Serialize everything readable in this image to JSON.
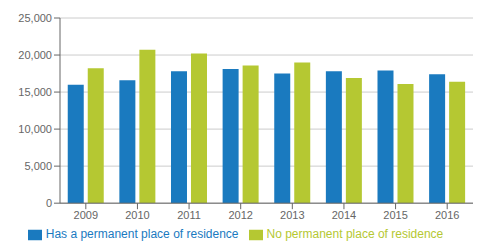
{
  "chart_data": {
    "type": "bar",
    "categories": [
      "2009",
      "2010",
      "2011",
      "2012",
      "2013",
      "2014",
      "2015",
      "2016"
    ],
    "series": [
      {
        "name": "Has a permanent place of residence",
        "color": "#1a7abf",
        "values": [
          16000,
          16600,
          17800,
          18100,
          17500,
          17800,
          17900,
          17400
        ]
      },
      {
        "name": "No permanent place of residence",
        "color": "#b5c832",
        "values": [
          18200,
          20700,
          20200,
          18600,
          19000,
          16900,
          16100,
          16400
        ]
      }
    ],
    "ylim": [
      0,
      25000
    ],
    "yticks": [
      0,
      {
        "value": 5000,
        "label": "5,000"
      },
      {
        "value": 10000,
        "label": "10,000"
      },
      {
        "value": 15000,
        "label": "15,000"
      },
      {
        "value": 20000,
        "label": "20,000"
      },
      {
        "value": 25000,
        "label": "25,000"
      }
    ],
    "grid": true,
    "legend": "bottom"
  }
}
